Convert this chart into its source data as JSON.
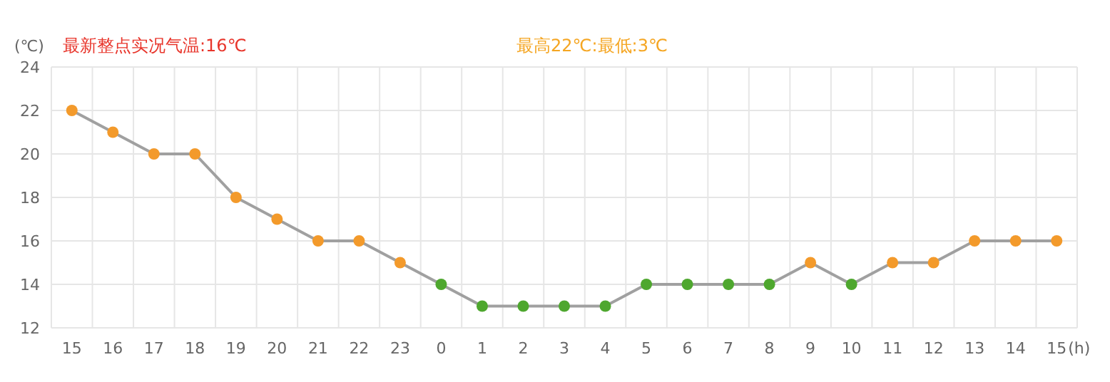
{
  "chart_data": {
    "type": "line",
    "title": "最新整点实况气温:16℃",
    "subtitle": "最高22℃:最低:3℃",
    "ylabel": "(℃)",
    "xlabel": "(h)",
    "categories": [
      "15",
      "16",
      "17",
      "18",
      "19",
      "20",
      "21",
      "22",
      "23",
      "0",
      "1",
      "2",
      "3",
      "4",
      "5",
      "6",
      "7",
      "8",
      "9",
      "10",
      "11",
      "12",
      "13",
      "14",
      "15"
    ],
    "series": [
      {
        "color": "#a0a0a0",
        "values": [
          22,
          21,
          20,
          20,
          18,
          17,
          16,
          16,
          15,
          14,
          13,
          13,
          13,
          13,
          14,
          14,
          14,
          14,
          15,
          14,
          15,
          15,
          16,
          16,
          16
        ],
        "colors": [
          "#f39a2b",
          "#f39a2b",
          "#f39a2b",
          "#f39a2b",
          "#f39a2b",
          "#f39a2b",
          "#f39a2b",
          "#f39a2b",
          "#f39a2b",
          "#4ea72e",
          "#4ea72e",
          "#4ea72e",
          "#4ea72e",
          "#4ea72e",
          "#4ea72e",
          "#4ea72e",
          "#4ea72e",
          "#4ea72e",
          "#f39a2b",
          "#4ea72e",
          "#f39a2b",
          "#f39a2b",
          "#f39a2b",
          "#f39a2b",
          "#f39a2b"
        ]
      }
    ],
    "ylim": [
      12,
      24
    ],
    "yticks": [
      12,
      14,
      16,
      18,
      20,
      22,
      24
    ],
    "grid": true,
    "marker": "circle"
  }
}
